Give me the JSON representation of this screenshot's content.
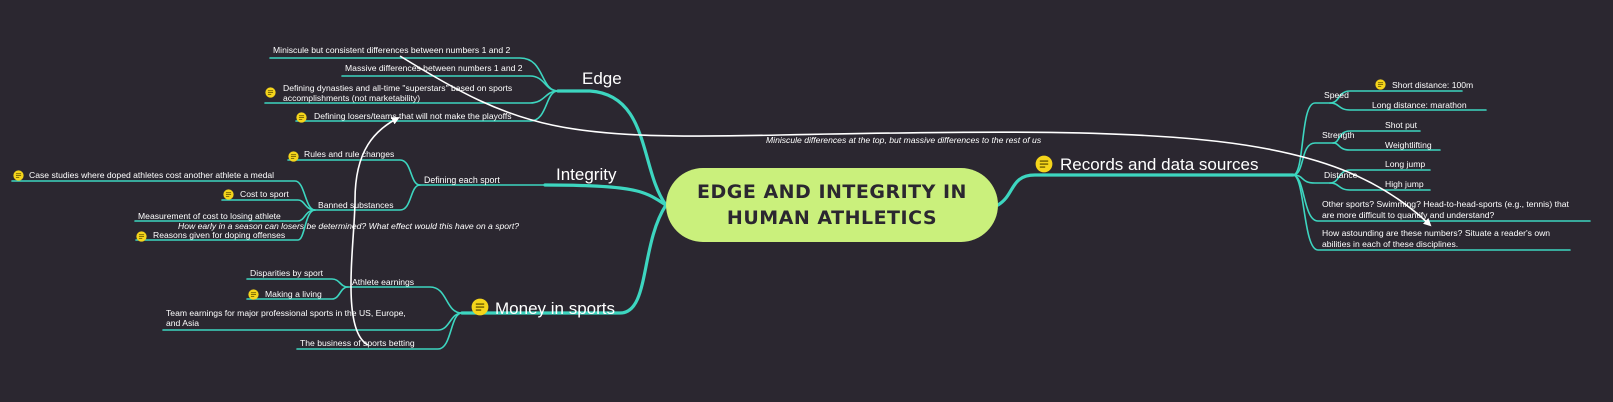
{
  "center": {
    "line1": "EDGE AND INTEGRITY IN",
    "line2": "HUMAN ATHLETICS"
  },
  "branches": {
    "edge": {
      "label": "Edge",
      "items": {
        "miniscule": "Miniscule but consistent differences between numbers 1 and 2",
        "massive": "Massive differences between numbers 1 and 2",
        "dynasties_l1": "Defining dynasties and all-time \"superstars\" based on sports",
        "dynasties_l2": "accomplishments (not marketability)",
        "losers": "Defining losers/teams that will not make the playoffs"
      }
    },
    "integrity": {
      "label": "Integrity",
      "subtopic": "Defining each sport",
      "rules": "Rules and rule changes",
      "banned": {
        "label": "Banned substances",
        "items": {
          "case_studies": "Case studies where doped athletes cost another athlete a medal",
          "cost": "Cost to sport",
          "measurement": "Measurement of cost to losing athlete",
          "reasons": "Reasons given for doping offenses"
        }
      }
    },
    "money": {
      "label": "Money in sports",
      "athlete_earnings": {
        "label": "Athlete earnings",
        "items": {
          "disparities": "Disparities by sport",
          "making_living": "Making a living"
        }
      },
      "team_earnings_l1": "Team earnings for major professional sports in the US, Europe,",
      "team_earnings_l2": "and Asia",
      "betting": "The business of sports betting"
    },
    "records": {
      "label": "Records and data sources",
      "speed": {
        "label": "Speed",
        "items": {
          "short": "Short distance: 100m",
          "long": "Long distance: marathon"
        }
      },
      "strength": {
        "label": "Strength",
        "items": {
          "shot_put": "Shot put",
          "weightlifting": "Weightlifting"
        }
      },
      "distance": {
        "label": "Distance",
        "items": {
          "long_jump": "Long jump",
          "high_jump": "High jump"
        }
      },
      "other_l1": "Other sports? Swimming? Head-to-head-sports (e.g., tennis) that",
      "other_l2": "are more difficult to quantify and understand?",
      "astounding_l1": "How astounding are these numbers? Situate a reader's own",
      "astounding_l2": "abilities in each of these disciplines."
    }
  },
  "relationships": {
    "top_note": "Miniscule differences at the top, but massive differences to the rest of us",
    "season_note": "How early in a season can losers be determined? What effect would this have on a sport?"
  },
  "colors": {
    "background": "#2b2730",
    "connector": "#3dd6c0",
    "center_fill": "#caf07c",
    "note_icon": "#f5d51b",
    "relationship": "#ffffff"
  },
  "icons": {
    "note": "note-icon"
  }
}
